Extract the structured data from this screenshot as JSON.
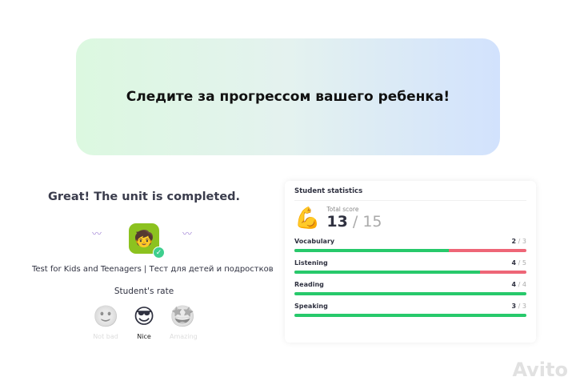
{
  "banner": {
    "title": "Следите за прогрессом вашего ребенка!"
  },
  "completion": {
    "title": "Great! The unit is completed.",
    "test_name": "Test for Kids and Teenagers | Тест для детей и подростков",
    "rate_label": "Student's rate",
    "rates": [
      {
        "label": "Not bad",
        "emoji": "🙂",
        "selected": false
      },
      {
        "label": "Nice",
        "emoji": "😎",
        "selected": true
      },
      {
        "label": "Amazing",
        "emoji": "🤩",
        "selected": false
      }
    ]
  },
  "stats": {
    "title": "Student statistics",
    "total_label": "Total score",
    "total": "13",
    "max": "15",
    "rows": [
      {
        "label": "Vocabulary",
        "score": "2",
        "max": "3",
        "fraction": 0.667
      },
      {
        "label": "Listening",
        "score": "4",
        "max": "5",
        "fraction": 0.8
      },
      {
        "label": "Reading",
        "score": "4",
        "max": "4",
        "fraction": 1
      },
      {
        "label": "Speaking",
        "score": "3",
        "max": "3",
        "fraction": 1
      }
    ]
  },
  "watermark": "Avito",
  "colors": {
    "good": "#27c96b",
    "bad": "#ee6677"
  }
}
